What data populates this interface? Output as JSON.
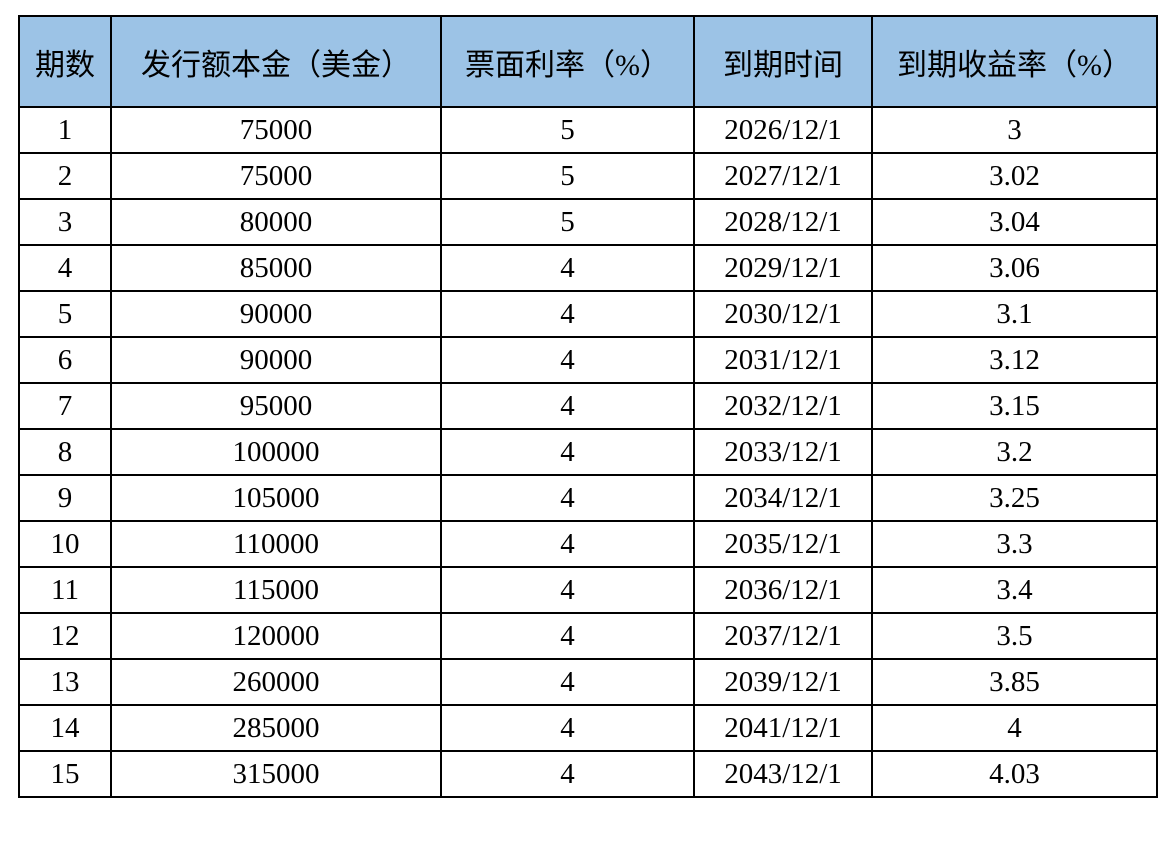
{
  "table": {
    "columns": [
      "期数",
      "发行额本金（美金）",
      "票面利率（%）",
      "到期时间",
      "到期收益率（%）"
    ],
    "rows": [
      [
        "1",
        "75000",
        "5",
        "2026/12/1",
        "3"
      ],
      [
        "2",
        "75000",
        "5",
        "2027/12/1",
        "3.02"
      ],
      [
        "3",
        "80000",
        "5",
        "2028/12/1",
        "3.04"
      ],
      [
        "4",
        "85000",
        "4",
        "2029/12/1",
        "3.06"
      ],
      [
        "5",
        "90000",
        "4",
        "2030/12/1",
        "3.1"
      ],
      [
        "6",
        "90000",
        "4",
        "2031/12/1",
        "3.12"
      ],
      [
        "7",
        "95000",
        "4",
        "2032/12/1",
        "3.15"
      ],
      [
        "8",
        "100000",
        "4",
        "2033/12/1",
        "3.2"
      ],
      [
        "9",
        "105000",
        "4",
        "2034/12/1",
        "3.25"
      ],
      [
        "10",
        "110000",
        "4",
        "2035/12/1",
        "3.3"
      ],
      [
        "11",
        "115000",
        "4",
        "2036/12/1",
        "3.4"
      ],
      [
        "12",
        "120000",
        "4",
        "2037/12/1",
        "3.5"
      ],
      [
        "13",
        "260000",
        "4",
        "2039/12/1",
        "3.85"
      ],
      [
        "14",
        "285000",
        "4",
        "2041/12/1",
        "4"
      ],
      [
        "15",
        "315000",
        "4",
        "2043/12/1",
        "4.03"
      ]
    ],
    "styles": {
      "header_bg": "#9CC3E6",
      "border_color": "#000000",
      "text_color": "#000000",
      "page_bg": "#FFFFFF"
    }
  }
}
